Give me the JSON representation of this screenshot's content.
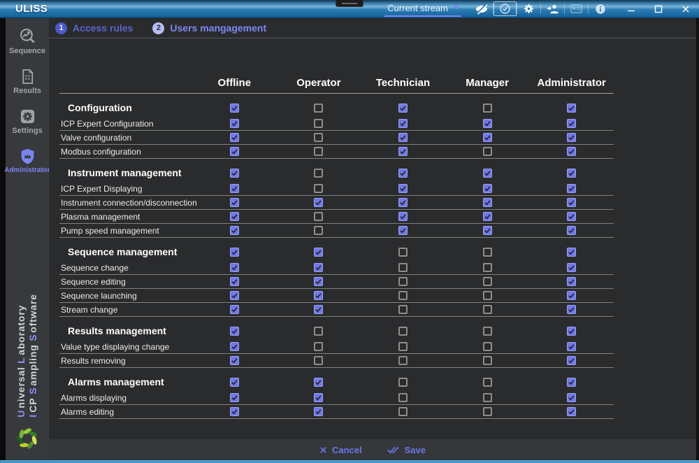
{
  "window": {
    "title": "ULISS",
    "stream_selector": {
      "label": "Current stream"
    },
    "toolbar_icons": [
      "eye-off-icon",
      "check-circle-icon",
      "gear-icon",
      "user-arrow-icon",
      "card-icon",
      "info-icon"
    ],
    "window_controls": [
      "minimize",
      "maximize",
      "close"
    ]
  },
  "stepper": {
    "steps": [
      {
        "number": "1",
        "label": "Access rules",
        "state": "done"
      },
      {
        "number": "2",
        "label": "Users mangagement",
        "state": "active"
      }
    ]
  },
  "sidebar": {
    "items": [
      {
        "label": "Sequence",
        "icon": "sequence-icon",
        "active": false
      },
      {
        "label": "Results",
        "icon": "results-icon",
        "active": false
      },
      {
        "label": "Settings",
        "icon": "settings-icon",
        "active": false
      },
      {
        "label": "Administrator",
        "icon": "administrator-shield-icon",
        "active": true
      }
    ],
    "branding": {
      "lines": [
        [
          [
            "U",
            "niversal"
          ],
          [
            "L",
            "aboratory"
          ]
        ],
        [
          [
            "I",
            "CP"
          ],
          [
            "S",
            "ampling"
          ],
          [
            "S",
            "oftware"
          ]
        ]
      ]
    },
    "logo": "uliss-wreath-logo"
  },
  "table": {
    "roles": [
      "Offline",
      "Operator",
      "Technician",
      "Manager",
      "Administrator"
    ],
    "sections": [
      {
        "name": "Configuration",
        "header_checks": [
          true,
          false,
          true,
          false,
          true
        ],
        "rows": [
          {
            "label": "ICP Expert Configuration",
            "checks": [
              true,
              false,
              true,
              true,
              true
            ]
          },
          {
            "label": "Valve configuration",
            "checks": [
              true,
              false,
              true,
              true,
              true
            ]
          },
          {
            "label": "Modbus configuration",
            "checks": [
              true,
              false,
              true,
              false,
              true
            ]
          }
        ]
      },
      {
        "name": "Instrument management",
        "header_checks": [
          true,
          false,
          true,
          true,
          true
        ],
        "rows": [
          {
            "label": "ICP Expert Displaying",
            "checks": [
              true,
              false,
              true,
              true,
              true
            ]
          },
          {
            "label": "Instrument connection/disconnection",
            "checks": [
              true,
              true,
              true,
              true,
              true
            ]
          },
          {
            "label": "Plasma management",
            "checks": [
              true,
              false,
              true,
              true,
              true
            ]
          },
          {
            "label": "Pump speed management",
            "checks": [
              true,
              false,
              true,
              true,
              true
            ]
          }
        ]
      },
      {
        "name": "Sequence management",
        "header_checks": [
          true,
          true,
          false,
          false,
          true
        ],
        "rows": [
          {
            "label": "Sequence change",
            "checks": [
              true,
              true,
              false,
              false,
              true
            ]
          },
          {
            "label": "Sequence editing",
            "checks": [
              true,
              true,
              false,
              false,
              true
            ]
          },
          {
            "label": "Sequence launching",
            "checks": [
              true,
              true,
              false,
              false,
              true
            ]
          },
          {
            "label": "Stream change",
            "checks": [
              true,
              true,
              false,
              false,
              true
            ]
          }
        ]
      },
      {
        "name": "Results management",
        "header_checks": [
          true,
          false,
          false,
          false,
          true
        ],
        "rows": [
          {
            "label": "Value type displaying change",
            "checks": [
              true,
              false,
              false,
              false,
              true
            ]
          },
          {
            "label": "Results removing",
            "checks": [
              true,
              false,
              false,
              false,
              true
            ]
          }
        ]
      },
      {
        "name": "Alarms management",
        "header_checks": [
          true,
          true,
          false,
          false,
          true
        ],
        "rows": [
          {
            "label": "Alarms displaying",
            "checks": [
              true,
              true,
              false,
              false,
              true
            ]
          },
          {
            "label": "Alarms editing",
            "checks": [
              true,
              true,
              false,
              false,
              true
            ]
          }
        ]
      }
    ]
  },
  "footer": {
    "cancel_label": "Cancel",
    "save_label": "Save"
  },
  "colors": {
    "accent_indigo": "#6b76e8",
    "checkbox_fill": "#7079e5",
    "titlebar_blue": "#2e7cb4",
    "sidebar_bg": "#37393c",
    "content_bg": "#2a2b2d",
    "logo_green": "#8bc34a"
  }
}
